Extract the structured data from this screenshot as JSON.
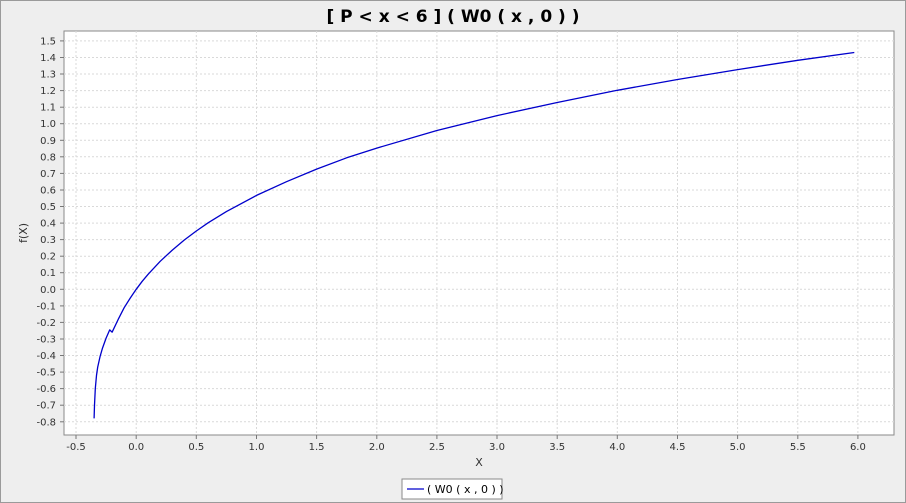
{
  "chart_data": {
    "type": "line",
    "title": "[ P < x < 6  ]  ( W0 ( x , 0 ) )",
    "xlabel": "X",
    "ylabel": "f(X)",
    "xlim": [
      -0.6,
      6.3
    ],
    "ylim": [
      -0.88,
      1.56
    ],
    "xticks": [
      -0.5,
      0.0,
      0.5,
      1.0,
      1.5,
      2.0,
      2.5,
      3.0,
      3.5,
      4.0,
      4.5,
      5.0,
      5.5,
      6.0
    ],
    "xtick_labels": [
      "-0.5",
      "0.0",
      "0.5",
      "1.0",
      "1.5",
      "2.0",
      "2.5",
      "3.0",
      "3.5",
      "4.0",
      "4.5",
      "5.0",
      "5.5",
      "6.0"
    ],
    "yticks": [
      -0.8,
      -0.7,
      -0.6,
      -0.5,
      -0.4,
      -0.3,
      -0.2,
      -0.1,
      0.0,
      0.1,
      0.2,
      0.3,
      0.4,
      0.5,
      0.6,
      0.7,
      0.8,
      0.9,
      1.0,
      1.1,
      1.2,
      1.3,
      1.4,
      1.5
    ],
    "ytick_labels": [
      "-0.8",
      "-0.7",
      "-0.6",
      "-0.5",
      "-0.4",
      "-0.3",
      "-0.2",
      "-0.1",
      "0.0",
      "0.1",
      "0.2",
      "0.3",
      "0.4",
      "0.5",
      "0.6",
      "0.7",
      "0.8",
      "0.9",
      "1.0",
      "1.1",
      "1.2",
      "1.3",
      "1.4",
      "1.5"
    ],
    "grid": true,
    "legend_position": "bottom-center",
    "series": [
      {
        "name": "( W0 ( x , 0 ) )",
        "color": "#0000cc",
        "x": [
          -0.3494,
          -0.3465,
          -0.34,
          -0.33,
          -0.32,
          -0.3,
          -0.28,
          -0.25,
          -0.22,
          -0.2,
          -0.15,
          -0.1,
          -0.05,
          0.0,
          0.05,
          0.1,
          0.2,
          0.3,
          0.4,
          0.5,
          0.6,
          0.75,
          1.0,
          1.25,
          1.5,
          1.75,
          2.0,
          2.5,
          3.0,
          3.5,
          4.0,
          4.5,
          5.0,
          5.5,
          5.97
        ],
        "y": [
          -0.78,
          -0.7,
          -0.6,
          -0.52,
          -0.47,
          -0.405,
          -0.355,
          -0.295,
          -0.245,
          -0.259,
          -0.183,
          -0.112,
          -0.053,
          0.0,
          0.048,
          0.091,
          0.169,
          0.237,
          0.298,
          0.352,
          0.402,
          0.469,
          0.567,
          0.65,
          0.726,
          0.794,
          0.853,
          0.959,
          1.049,
          1.128,
          1.202,
          1.267,
          1.327,
          1.383,
          1.43
        ]
      }
    ]
  }
}
